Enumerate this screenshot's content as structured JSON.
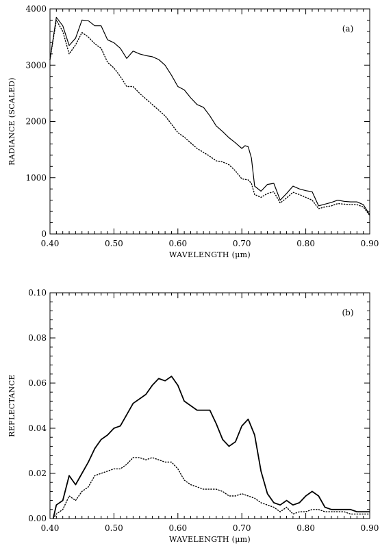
{
  "chart_data": [
    {
      "type": "line",
      "panel_label": "(a)",
      "title": "",
      "xlabel": "WAVELENGTH (μm)",
      "ylabel": "RADIANCE (SCALED)",
      "xlim": [
        0.4,
        0.9
      ],
      "ylim": [
        0,
        4000
      ],
      "xticks": [
        "0.40",
        "0.50",
        "0.60",
        "0.70",
        "0.80",
        "0.90"
      ],
      "yticks": [
        "0",
        "1000",
        "2000",
        "3000",
        "4000"
      ],
      "grid": false,
      "series": [
        {
          "style": "solid",
          "x": [
            0.4,
            0.41,
            0.42,
            0.43,
            0.44,
            0.45,
            0.46,
            0.47,
            0.48,
            0.49,
            0.5,
            0.51,
            0.52,
            0.53,
            0.54,
            0.55,
            0.56,
            0.57,
            0.58,
            0.59,
            0.6,
            0.61,
            0.62,
            0.63,
            0.64,
            0.65,
            0.66,
            0.67,
            0.68,
            0.69,
            0.7,
            0.705,
            0.71,
            0.715,
            0.72,
            0.73,
            0.74,
            0.75,
            0.76,
            0.77,
            0.78,
            0.79,
            0.8,
            0.81,
            0.82,
            0.83,
            0.84,
            0.85,
            0.86,
            0.87,
            0.88,
            0.89,
            0.9
          ],
          "y": [
            3100,
            3850,
            3700,
            3350,
            3480,
            3800,
            3790,
            3700,
            3700,
            3450,
            3400,
            3300,
            3120,
            3250,
            3200,
            3170,
            3150,
            3100,
            3000,
            2820,
            2620,
            2560,
            2420,
            2300,
            2250,
            2100,
            1920,
            1820,
            1710,
            1620,
            1520,
            1570,
            1550,
            1350,
            850,
            760,
            880,
            900,
            600,
            720,
            850,
            800,
            770,
            750,
            500,
            530,
            560,
            600,
            580,
            570,
            570,
            520,
            340
          ]
        },
        {
          "style": "dotted",
          "x": [
            0.4,
            0.41,
            0.42,
            0.43,
            0.44,
            0.45,
            0.46,
            0.47,
            0.48,
            0.49,
            0.5,
            0.51,
            0.52,
            0.53,
            0.54,
            0.55,
            0.56,
            0.57,
            0.58,
            0.59,
            0.6,
            0.61,
            0.62,
            0.63,
            0.64,
            0.65,
            0.66,
            0.67,
            0.68,
            0.69,
            0.7,
            0.71,
            0.715,
            0.72,
            0.73,
            0.74,
            0.75,
            0.76,
            0.77,
            0.78,
            0.79,
            0.8,
            0.81,
            0.82,
            0.83,
            0.84,
            0.85,
            0.86,
            0.87,
            0.88,
            0.89,
            0.9
          ],
          "y": [
            3100,
            3800,
            3600,
            3200,
            3360,
            3580,
            3500,
            3380,
            3300,
            3050,
            2950,
            2800,
            2620,
            2620,
            2500,
            2400,
            2300,
            2200,
            2100,
            1950,
            1800,
            1720,
            1620,
            1520,
            1450,
            1380,
            1300,
            1280,
            1230,
            1120,
            980,
            960,
            900,
            700,
            650,
            720,
            750,
            550,
            640,
            740,
            700,
            650,
            600,
            450,
            480,
            500,
            540,
            530,
            520,
            520,
            480,
            330
          ]
        }
      ]
    },
    {
      "type": "line",
      "panel_label": "(b)",
      "title": "",
      "xlabel": "WAVELENGTH (μm)",
      "ylabel": "REFLECTANCE",
      "xlim": [
        0.4,
        0.9
      ],
      "ylim": [
        0,
        0.1
      ],
      "xticks": [
        "0.40",
        "0.50",
        "0.60",
        "0.70",
        "0.80",
        "0.90"
      ],
      "yticks": [
        "0.00",
        "0.02",
        "0.04",
        "0.06",
        "0.08",
        "0.10"
      ],
      "grid": false,
      "series": [
        {
          "style": "solid",
          "x": [
            0.405,
            0.41,
            0.42,
            0.43,
            0.44,
            0.45,
            0.46,
            0.47,
            0.48,
            0.49,
            0.5,
            0.51,
            0.52,
            0.53,
            0.54,
            0.55,
            0.56,
            0.57,
            0.58,
            0.59,
            0.6,
            0.61,
            0.62,
            0.63,
            0.64,
            0.65,
            0.66,
            0.67,
            0.68,
            0.69,
            0.7,
            0.71,
            0.72,
            0.73,
            0.74,
            0.75,
            0.76,
            0.77,
            0.78,
            0.79,
            0.8,
            0.81,
            0.82,
            0.83,
            0.84,
            0.85,
            0.86,
            0.87,
            0.88,
            0.89,
            0.9
          ],
          "y": [
            0.0,
            0.006,
            0.008,
            0.019,
            0.015,
            0.02,
            0.025,
            0.031,
            0.035,
            0.037,
            0.04,
            0.041,
            0.046,
            0.051,
            0.053,
            0.055,
            0.059,
            0.062,
            0.061,
            0.063,
            0.059,
            0.052,
            0.05,
            0.048,
            0.048,
            0.048,
            0.042,
            0.035,
            0.032,
            0.034,
            0.041,
            0.044,
            0.037,
            0.021,
            0.011,
            0.007,
            0.006,
            0.008,
            0.006,
            0.007,
            0.01,
            0.012,
            0.01,
            0.005,
            0.004,
            0.004,
            0.004,
            0.004,
            0.003,
            0.003,
            0.003
          ]
        },
        {
          "style": "dotted",
          "x": [
            0.405,
            0.41,
            0.42,
            0.43,
            0.44,
            0.45,
            0.46,
            0.47,
            0.48,
            0.49,
            0.5,
            0.51,
            0.52,
            0.53,
            0.54,
            0.55,
            0.56,
            0.57,
            0.58,
            0.59,
            0.6,
            0.61,
            0.62,
            0.63,
            0.64,
            0.65,
            0.66,
            0.67,
            0.68,
            0.69,
            0.7,
            0.71,
            0.72,
            0.73,
            0.74,
            0.75,
            0.76,
            0.77,
            0.78,
            0.79,
            0.8,
            0.81,
            0.82,
            0.83,
            0.84,
            0.85,
            0.86,
            0.87,
            0.88,
            0.89,
            0.9
          ],
          "y": [
            0.0,
            0.002,
            0.004,
            0.01,
            0.008,
            0.012,
            0.014,
            0.019,
            0.02,
            0.021,
            0.022,
            0.022,
            0.024,
            0.027,
            0.027,
            0.026,
            0.027,
            0.026,
            0.025,
            0.025,
            0.022,
            0.017,
            0.015,
            0.014,
            0.013,
            0.013,
            0.013,
            0.012,
            0.01,
            0.01,
            0.011,
            0.01,
            0.009,
            0.007,
            0.006,
            0.005,
            0.003,
            0.005,
            0.002,
            0.003,
            0.003,
            0.004,
            0.004,
            0.003,
            0.003,
            0.003,
            0.003,
            0.002,
            0.002,
            0.002,
            0.002
          ]
        }
      ]
    }
  ]
}
